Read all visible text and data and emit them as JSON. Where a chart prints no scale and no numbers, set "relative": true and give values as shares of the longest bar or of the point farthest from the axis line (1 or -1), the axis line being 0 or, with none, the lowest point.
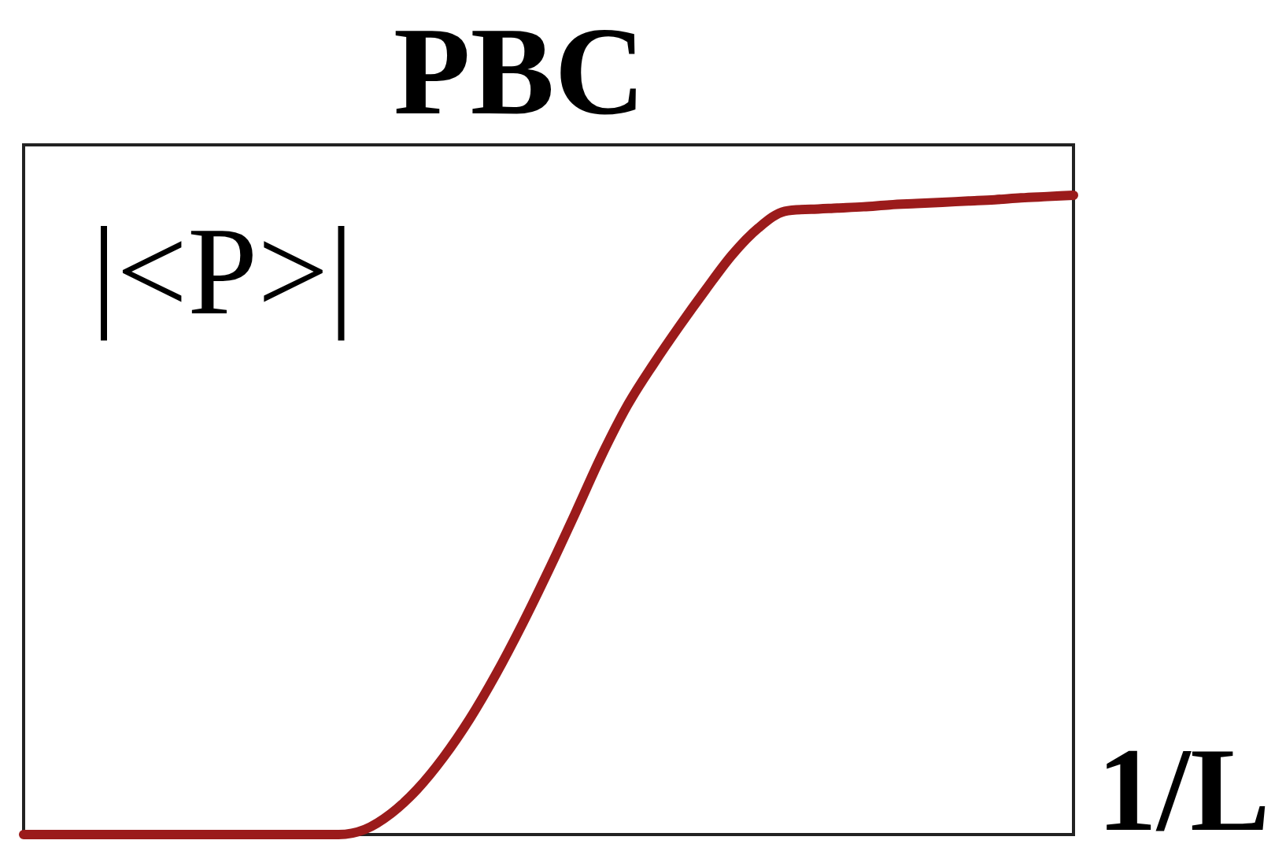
{
  "chart_data": {
    "type": "line",
    "title": "PBC",
    "xlabel": "1/L",
    "ylabel": "|<P>|",
    "relative": true,
    "legend": false,
    "marker": "none",
    "line_style": "solid",
    "color": "#9b1b1b",
    "categories": [
      null,
      null,
      null,
      null,
      null,
      null,
      null,
      null,
      null,
      null,
      null,
      null,
      null,
      null,
      null,
      null,
      null,
      null,
      null,
      null,
      null,
      null,
      null,
      null,
      null,
      null,
      null,
      null,
      null,
      null,
      null,
      null,
      null,
      null,
      null,
      null,
      null,
      null,
      null,
      null,
      null
    ],
    "values": [
      0,
      0,
      0,
      0,
      0,
      0,
      0,
      0,
      0,
      0,
      0,
      0,
      0,
      0.008,
      0.033,
      0.071,
      0.121,
      0.181,
      0.251,
      0.329,
      0.413,
      0.501,
      0.591,
      0.671,
      0.736,
      0.796,
      0.853,
      0.907,
      0.949,
      0.975,
      0.978,
      0.98,
      0.982,
      0.985,
      0.987,
      0.989,
      0.991,
      0.993,
      0.996,
      0.998,
      1
    ]
  }
}
